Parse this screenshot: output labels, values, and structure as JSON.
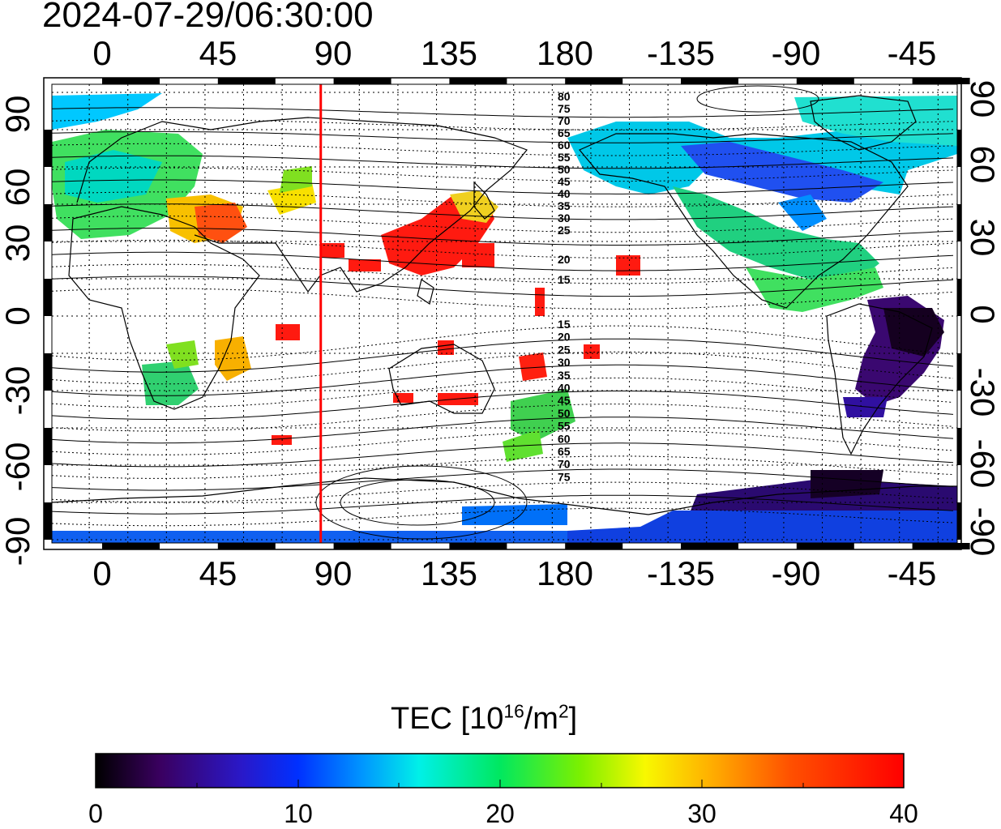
{
  "timestamp": "2024-07-29/06:30:00",
  "axes": {
    "top_lon_labels": [
      "0",
      "45",
      "90",
      "135",
      "180",
      "-135",
      "-90",
      "-45"
    ],
    "bottom_lon_labels": [
      "0",
      "45",
      "90",
      "135",
      "180",
      "-135",
      "-90",
      "-45"
    ],
    "left_lat_labels": [
      "90",
      "60",
      "30",
      "0",
      "-30",
      "-60",
      "-90"
    ],
    "right_lat_labels": [
      "90",
      "60",
      "30",
      "0",
      "-30",
      "-60",
      "-90"
    ]
  },
  "magnetic_contour_labels": {
    "north": [
      "80",
      "75",
      "70",
      "65",
      "60",
      "55",
      "50",
      "45",
      "40",
      "35",
      "30",
      "25",
      "20",
      "15"
    ],
    "south": [
      "15",
      "20",
      "25",
      "30",
      "35",
      "40",
      "45",
      "50",
      "55",
      "60",
      "65",
      "70",
      "75"
    ]
  },
  "terminator_longitude": 85,
  "colorbar": {
    "title_main": "TEC  [10",
    "title_sup1": "16",
    "title_mid": "/m",
    "title_sup2": "2",
    "title_end": "]",
    "tick_labels": [
      "0",
      "10",
      "20",
      "30",
      "40"
    ],
    "range": [
      0,
      40
    ]
  },
  "colors": {
    "terminator": "#ff0000",
    "frame": "#000000"
  }
}
